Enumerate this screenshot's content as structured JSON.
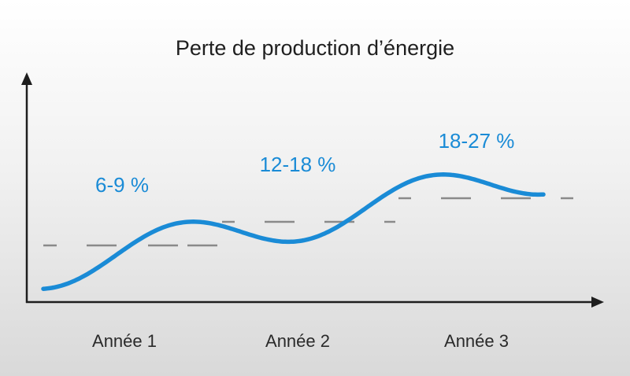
{
  "colors": {
    "curve": "#1a8bd6",
    "peak_labels": "#1a8bd6",
    "reference_dashes": "#8a8a8a",
    "axes": "#1e1e1e",
    "title": "#1f1f1f"
  },
  "chart_data": {
    "type": "line",
    "title": "Perte de production d’énergie",
    "xlabel": "",
    "ylabel": "",
    "grid": false,
    "axes_arrows": true,
    "categories": [
      "Année 1",
      "Année 2",
      "Année 3"
    ],
    "peak_labels": [
      "6-9 %",
      "12-18 %",
      "18-27 %"
    ],
    "series": [
      {
        "style": "smooth wavy curve",
        "x": [
          0.0,
          0.5,
          1.0,
          1.5,
          2.0,
          2.5,
          3.0,
          3.5,
          4.0
        ],
        "y": [
          0.0,
          0.5,
          1.0,
          1.5,
          2.0,
          2.5,
          3.0,
          3.5,
          4.0
        ]
      }
    ],
    "reference_levels": [
      {
        "category": "Année 1",
        "level": 1.0
      },
      {
        "category": "Année 2",
        "level": 2.0
      },
      {
        "category": "Année 3",
        "level": 3.0
      }
    ]
  }
}
